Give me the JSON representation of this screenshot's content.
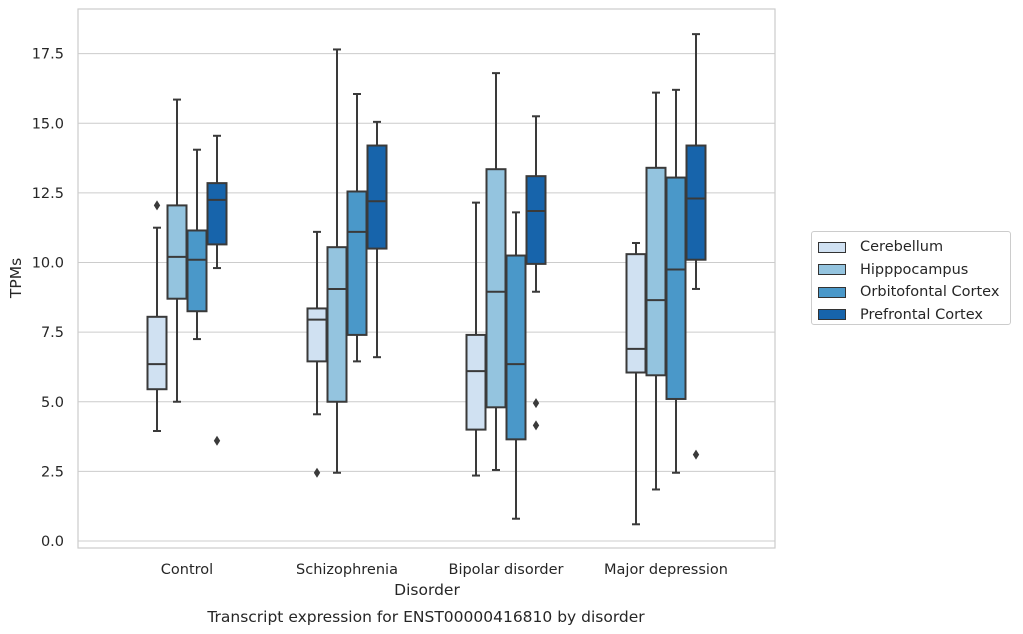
{
  "chart_data": {
    "type": "box",
    "title": "Transcript expression for ENST00000416810 by disorder",
    "xlabel": "Disorder",
    "ylabel": "TPMs",
    "ylim": [
      -0.3,
      19.3
    ],
    "yticks": [
      "0.0",
      "2.5",
      "5.0",
      "7.5",
      "10.0",
      "12.5",
      "15.0",
      "17.5"
    ],
    "categories": [
      "Control",
      "Schizophrenia",
      "Bipolar disorder",
      "Major depression"
    ],
    "grid": "horizontal",
    "legend_position": "right",
    "series": [
      {
        "name": "Cerebellum",
        "color": "#d0e1f2",
        "boxes": [
          {
            "whisker_low": 3.95,
            "q1": 5.45,
            "median": 6.35,
            "q3": 8.05,
            "whisker_high": 11.25,
            "outliers": [
              12.05
            ]
          },
          {
            "whisker_low": 4.55,
            "q1": 6.45,
            "median": 7.95,
            "q3": 8.35,
            "whisker_high": 11.1,
            "outliers": [
              2.45
            ]
          },
          {
            "whisker_low": 2.35,
            "q1": 4.0,
            "median": 6.1,
            "q3": 7.4,
            "whisker_high": 12.15,
            "outliers": []
          },
          {
            "whisker_low": 0.6,
            "q1": 6.05,
            "median": 6.9,
            "q3": 10.3,
            "whisker_high": 10.7,
            "outliers": []
          }
        ]
      },
      {
        "name": "Hipppocampus",
        "color": "#94c4df",
        "boxes": [
          {
            "whisker_low": 5.0,
            "q1": 8.7,
            "median": 10.2,
            "q3": 12.05,
            "whisker_high": 15.85,
            "outliers": []
          },
          {
            "whisker_low": 2.45,
            "q1": 5.0,
            "median": 9.05,
            "q3": 10.55,
            "whisker_high": 17.65,
            "outliers": []
          },
          {
            "whisker_low": 2.55,
            "q1": 4.8,
            "median": 8.95,
            "q3": 13.35,
            "whisker_high": 16.8,
            "outliers": []
          },
          {
            "whisker_low": 1.85,
            "q1": 5.95,
            "median": 8.65,
            "q3": 13.4,
            "whisker_high": 16.1,
            "outliers": []
          }
        ]
      },
      {
        "name": "Orbitofontal Cortex",
        "color": "#4a98c9",
        "boxes": [
          {
            "whisker_low": 7.25,
            "q1": 8.25,
            "median": 10.1,
            "q3": 11.15,
            "whisker_high": 14.05,
            "outliers": []
          },
          {
            "whisker_low": 6.45,
            "q1": 7.4,
            "median": 11.1,
            "q3": 12.55,
            "whisker_high": 16.05,
            "outliers": []
          },
          {
            "whisker_low": 0.8,
            "q1": 3.65,
            "median": 6.35,
            "q3": 10.25,
            "whisker_high": 11.8,
            "outliers": []
          },
          {
            "whisker_low": 2.45,
            "q1": 5.1,
            "median": 9.75,
            "q3": 13.05,
            "whisker_high": 16.2,
            "outliers": []
          }
        ]
      },
      {
        "name": "Prefrontal Cortex",
        "color": "#1764ab",
        "boxes": [
          {
            "whisker_low": 9.8,
            "q1": 10.65,
            "median": 12.25,
            "q3": 12.85,
            "whisker_high": 14.55,
            "outliers": [
              3.6
            ]
          },
          {
            "whisker_low": 6.6,
            "q1": 10.5,
            "median": 12.2,
            "q3": 14.2,
            "whisker_high": 15.05,
            "outliers": []
          },
          {
            "whisker_low": 8.95,
            "q1": 9.95,
            "median": 11.85,
            "q3": 13.1,
            "whisker_high": 15.25,
            "outliers": [
              4.95,
              4.15
            ]
          },
          {
            "whisker_low": 9.05,
            "q1": 10.1,
            "median": 12.3,
            "q3": 14.2,
            "whisker_high": 18.2,
            "outliers": [
              3.1
            ]
          }
        ]
      }
    ]
  }
}
